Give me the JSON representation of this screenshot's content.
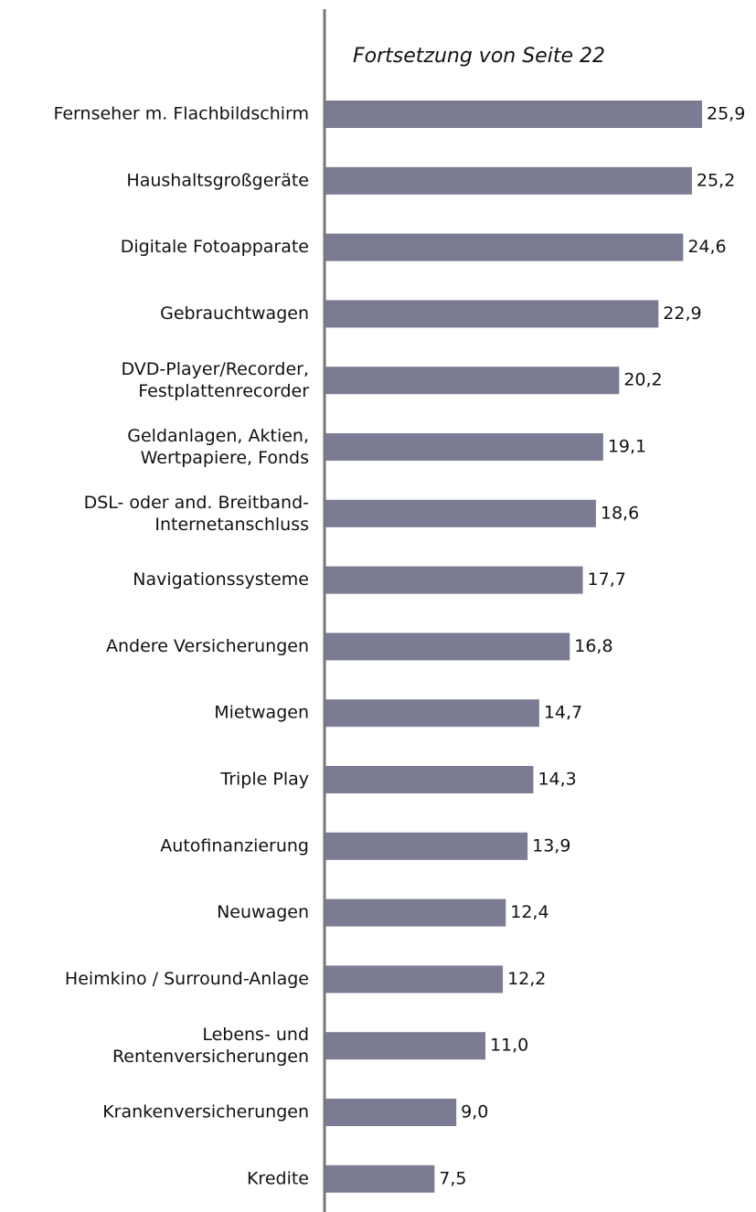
{
  "chart_data": {
    "type": "bar",
    "orientation": "horizontal",
    "annotation": "Fortsetzung von Seite 22",
    "color": "#7b7b93",
    "categories": [
      "Fernseher m. Flachbildschirm",
      "Haushaltsgroßgeräte",
      "Digitale Fotoapparate",
      "Gebrauchtwagen",
      "DVD-Player/Recorder,\nFestplattenrecorder",
      "Geldanlagen, Aktien,\nWertpapiere, Fonds",
      "DSL- oder and. Breitband-\nInternetanschluss",
      "Navigationssysteme",
      "Andere Versicherungen",
      "Mietwagen",
      "Triple Play",
      "Autofinanzierung",
      "Neuwagen",
      "Heimkino / Surround-Anlage",
      "Lebens- und\nRentenversicherungen",
      "Krankenversicherungen",
      "Kredite"
    ],
    "values": [
      25.9,
      25.2,
      24.6,
      22.9,
      20.2,
      19.1,
      18.6,
      17.7,
      16.8,
      14.7,
      14.3,
      13.9,
      12.4,
      12.2,
      11.0,
      9.0,
      7.5
    ],
    "value_labels": [
      "25,9",
      "25,2",
      "24,6",
      "22,9",
      "20,2",
      "19,1",
      "18,6",
      "17,7",
      "16,8",
      "14,7",
      "14,3",
      "13,9",
      "12,4",
      "12,2",
      "11,0",
      "9,0",
      "7,5"
    ]
  }
}
